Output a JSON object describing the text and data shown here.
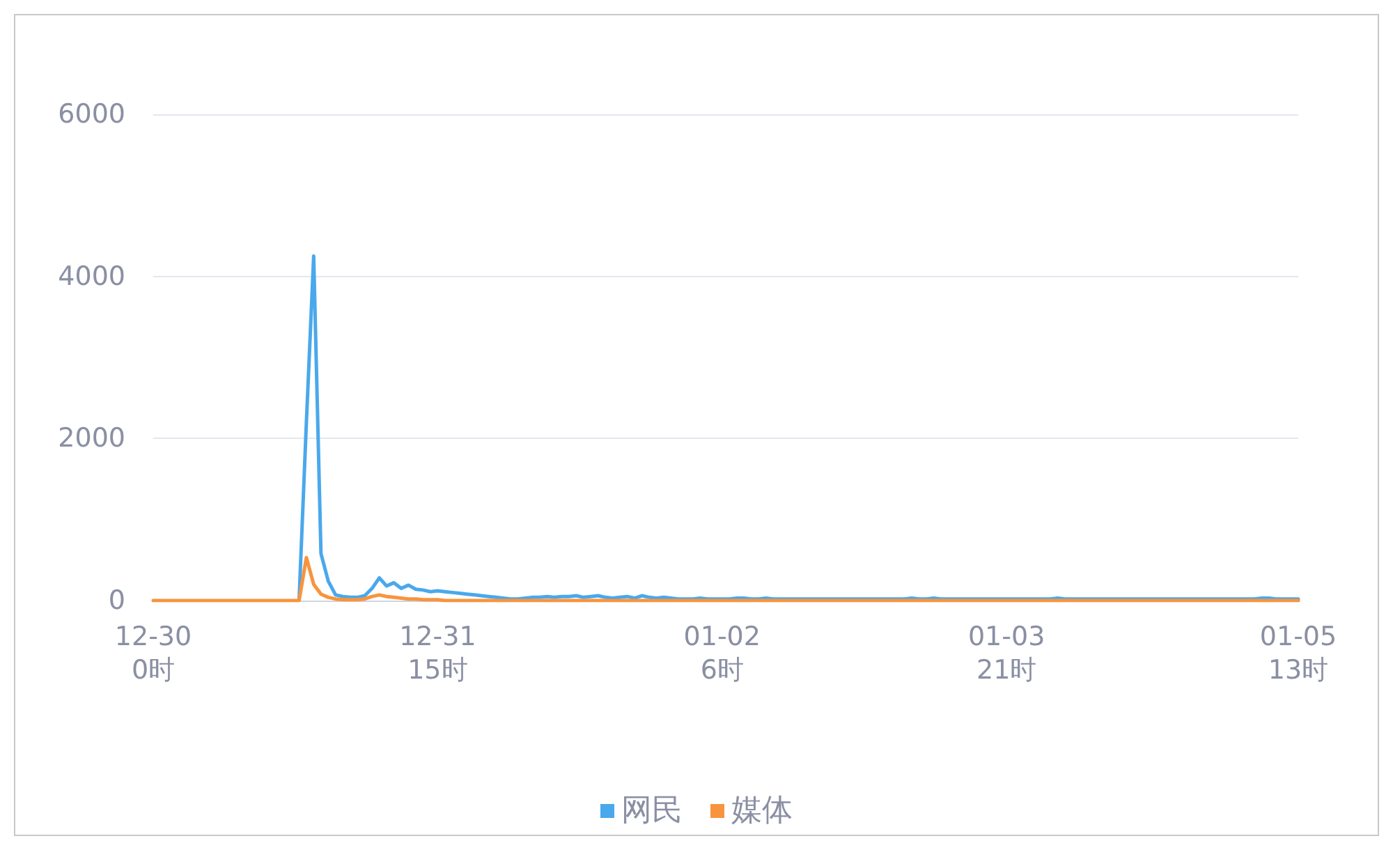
{
  "chart_data": {
    "type": "line",
    "categories": [
      "12-30\n0时",
      null,
      null,
      null,
      null,
      null,
      null,
      null,
      null,
      null,
      null,
      null,
      null,
      null,
      null,
      null,
      null,
      null,
      null,
      null,
      null,
      null,
      null,
      null,
      null,
      null,
      null,
      null,
      null,
      null,
      null,
      null,
      null,
      null,
      null,
      null,
      null,
      null,
      null,
      "12-31\n15时",
      null,
      null,
      null,
      null,
      null,
      null,
      null,
      null,
      null,
      null,
      null,
      null,
      null,
      null,
      null,
      null,
      null,
      null,
      null,
      null,
      null,
      null,
      null,
      null,
      null,
      null,
      null,
      null,
      null,
      null,
      null,
      null,
      null,
      null,
      null,
      null,
      null,
      null,
      "01-02\n6时",
      null,
      null,
      null,
      null,
      null,
      null,
      null,
      null,
      null,
      null,
      null,
      null,
      null,
      null,
      null,
      null,
      null,
      null,
      null,
      null,
      null,
      null,
      null,
      null,
      null,
      null,
      null,
      null,
      null,
      null,
      null,
      null,
      null,
      null,
      null,
      null,
      null,
      null,
      "01-03\n21时",
      null,
      null,
      null,
      null,
      null,
      null,
      null,
      null,
      null,
      null,
      null,
      null,
      null,
      null,
      null,
      null,
      null,
      null,
      null,
      null,
      null,
      null,
      null,
      null,
      null,
      null,
      null,
      null,
      null,
      null,
      null,
      null,
      null,
      null,
      null,
      null,
      null,
      null,
      null,
      "01-05\n13时"
    ],
    "series": [
      {
        "name": "网民",
        "color": "#4aa8ec",
        "values": [
          null,
          null,
          null,
          null,
          null,
          null,
          null,
          null,
          null,
          null,
          null,
          null,
          null,
          null,
          null,
          null,
          null,
          null,
          null,
          null,
          10,
          2200,
          4250,
          580,
          240,
          70,
          50,
          40,
          40,
          60,
          150,
          280,
          180,
          220,
          150,
          190,
          140,
          130,
          110,
          120,
          110,
          100,
          90,
          80,
          70,
          60,
          50,
          40,
          30,
          20,
          20,
          30,
          40,
          40,
          50,
          40,
          50,
          50,
          60,
          40,
          50,
          60,
          40,
          30,
          40,
          50,
          30,
          60,
          40,
          30,
          40,
          30,
          20,
          20,
          20,
          30,
          20,
          20,
          20,
          20,
          30,
          30,
          20,
          20,
          30,
          20,
          20,
          20,
          20,
          20,
          20,
          20,
          20,
          20,
          20,
          20,
          20,
          20,
          20,
          20,
          20,
          20,
          20,
          20,
          30,
          20,
          20,
          30,
          20,
          20,
          20,
          20,
          20,
          20,
          20,
          20,
          20,
          20,
          20,
          20,
          20,
          20,
          20,
          20,
          30,
          20,
          20,
          20,
          20,
          20,
          20,
          20,
          20,
          20,
          20,
          20,
          20,
          20,
          20,
          20,
          20,
          20,
          20,
          20,
          20,
          20,
          20,
          20,
          20,
          20,
          20,
          20,
          30,
          30,
          20,
          20,
          20,
          20
        ]
      },
      {
        "name": "媒体",
        "color": "#f8943e",
        "values": [
          0,
          0,
          0,
          0,
          0,
          0,
          0,
          0,
          0,
          0,
          0,
          0,
          0,
          0,
          0,
          0,
          0,
          0,
          0,
          0,
          0,
          530,
          200,
          80,
          40,
          20,
          10,
          10,
          10,
          20,
          50,
          70,
          50,
          40,
          30,
          20,
          20,
          10,
          10,
          10,
          0,
          0,
          0,
          0,
          0,
          0,
          0,
          0,
          0,
          0,
          0,
          0,
          0,
          0,
          0,
          0,
          0,
          0,
          0,
          0,
          0,
          0,
          0,
          0,
          0,
          0,
          0,
          0,
          0,
          0,
          0,
          0,
          0,
          0,
          0,
          0,
          0,
          0,
          0,
          0,
          0,
          0,
          0,
          0,
          0,
          0,
          0,
          0,
          0,
          0,
          0,
          0,
          0,
          0,
          0,
          0,
          0,
          0,
          0,
          0,
          0,
          0,
          0,
          0,
          0,
          0,
          0,
          0,
          0,
          0,
          0,
          0,
          0,
          0,
          0,
          0,
          0,
          0,
          0,
          0,
          0,
          0,
          0,
          0,
          0,
          0,
          0,
          0,
          0,
          0,
          0,
          0,
          0,
          0,
          0,
          0,
          0,
          0,
          0,
          0,
          0,
          0,
          0,
          0,
          0,
          0,
          0,
          0,
          0,
          0,
          0,
          0,
          0,
          0,
          0,
          0,
          0,
          0
        ]
      }
    ],
    "ylim": [
      0,
      6000
    ],
    "yticks": [
      0,
      2000,
      4000,
      6000
    ],
    "grid": "y",
    "legend": "bottom",
    "marker": "none",
    "line_style": "solid"
  }
}
